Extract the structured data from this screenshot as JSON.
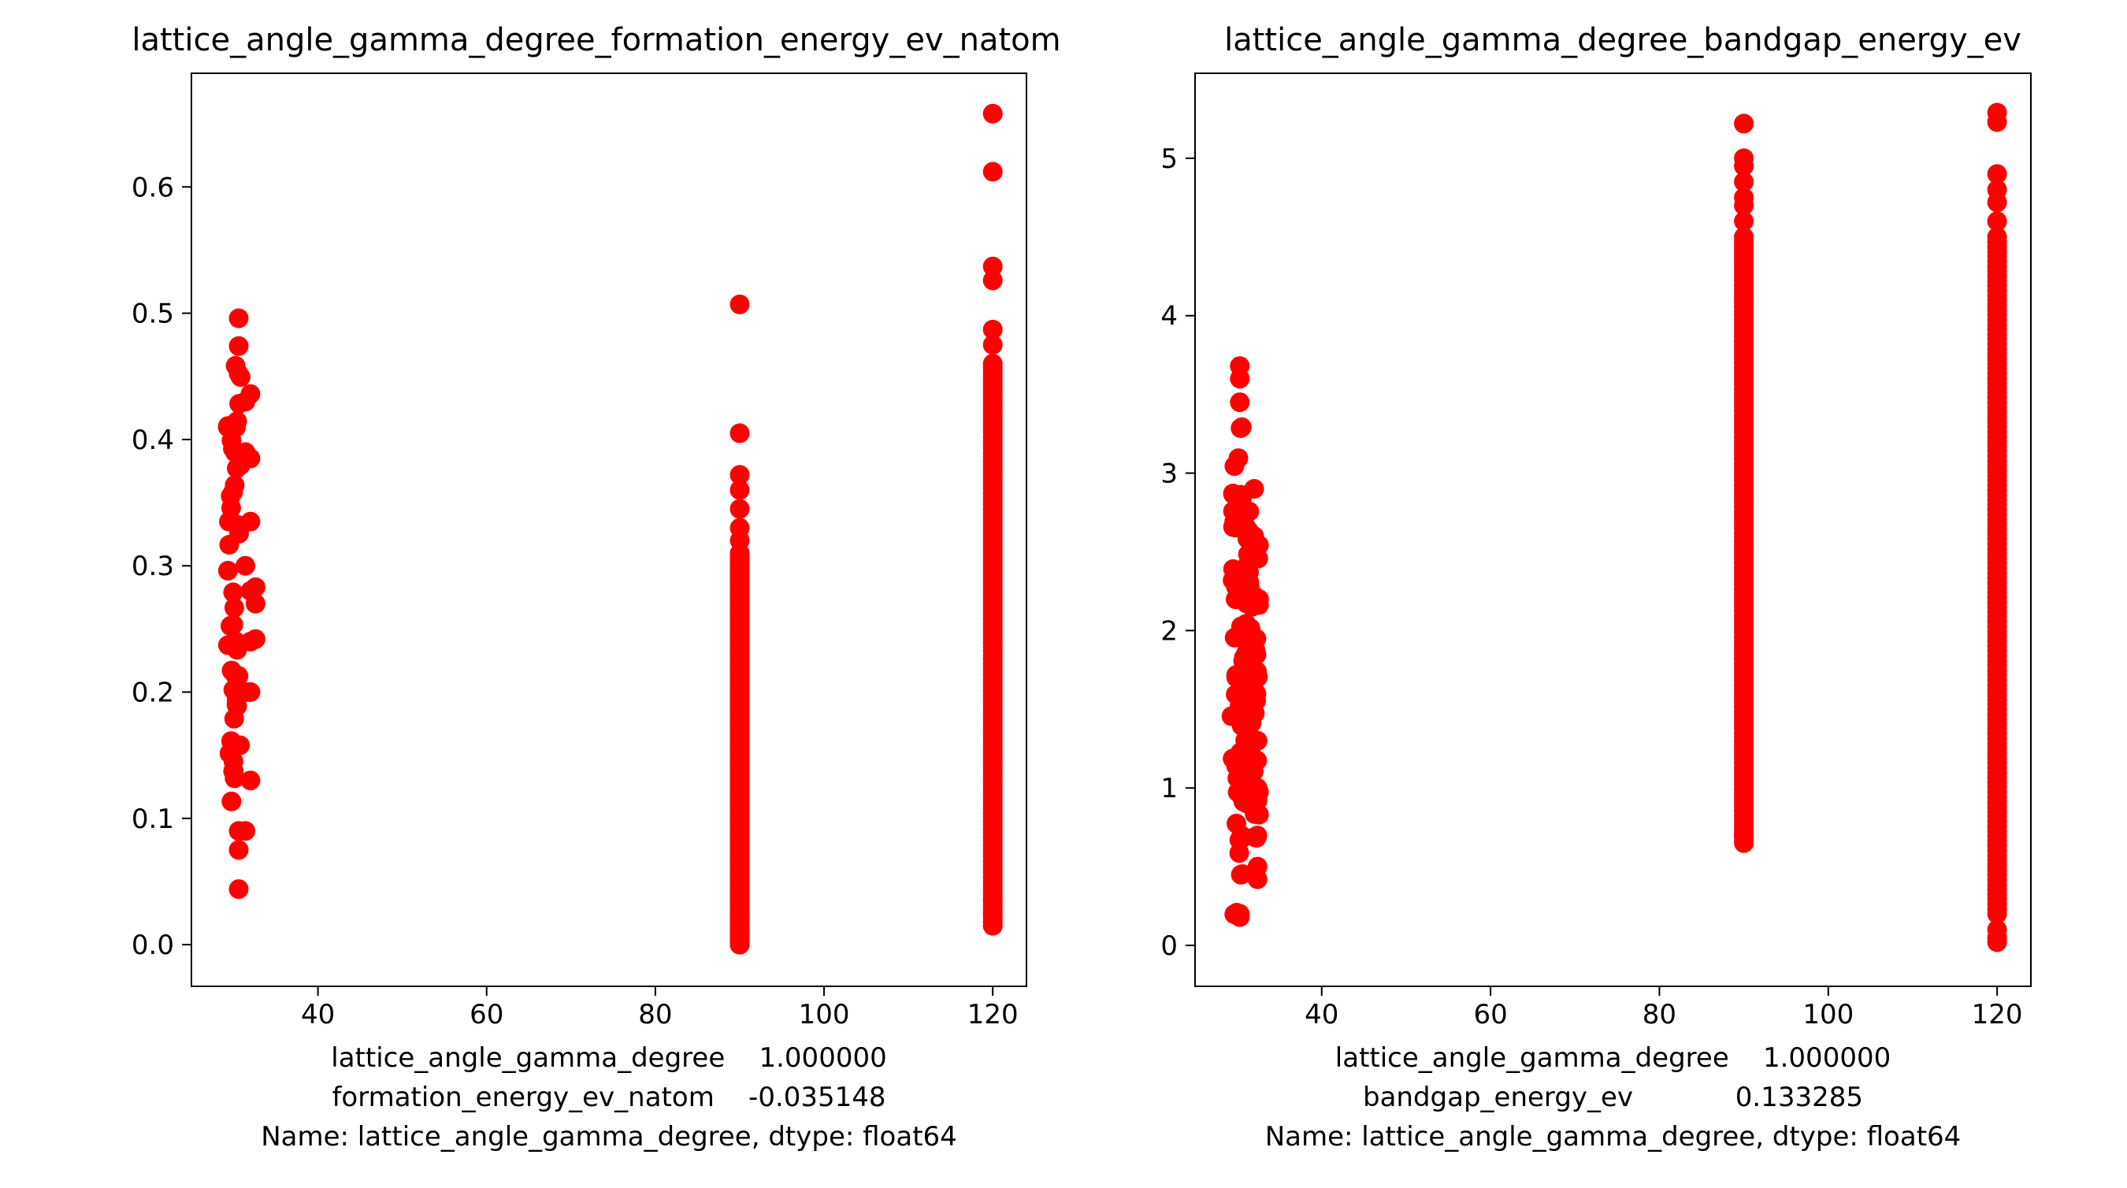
{
  "chart_data": [
    {
      "type": "scatter",
      "title": "lattice_angle_gamma_degree_formation_energy_ev_natom",
      "xlabel_lines": [
        "lattice_angle_gamma_degree    1.000000",
        "formation_energy_ev_natom    -0.035148",
        "Name: lattice_angle_gamma_degree, dtype: float64"
      ],
      "xlim": [
        25,
        124
      ],
      "ylim": [
        -0.033,
        0.69
      ],
      "xticks": [
        40,
        60,
        80,
        100,
        120
      ],
      "yticks": [
        0.0,
        0.1,
        0.2,
        0.3,
        0.4,
        0.5,
        0.6
      ],
      "ytick_labels": [
        "0.0",
        "0.1",
        "0.2",
        "0.3",
        "0.4",
        "0.5",
        "0.6"
      ],
      "marker_color": "#ff0000",
      "groups": [
        {
          "x": 30.1,
          "y_range": [
            0.07,
            0.46
          ],
          "scatter": true
        },
        {
          "x": 30.6,
          "y": [
            0.044,
            0.496,
            0.474,
            0.452,
            0.09,
            0.075
          ]
        },
        {
          "x": 31.4,
          "y": [
            0.43,
            0.39,
            0.3,
            0.2,
            0.09
          ]
        },
        {
          "x": 32.0,
          "y": [
            0.436,
            0.385,
            0.335,
            0.28,
            0.24,
            0.2,
            0.13
          ]
        },
        {
          "x": 32.6,
          "y": [
            0.283,
            0.27,
            0.242
          ]
        },
        {
          "x": 90.0,
          "y_range": [
            0.0,
            0.31
          ],
          "dense": true
        },
        {
          "x": 90.0,
          "y": [
            0.0,
            0.005,
            0.012,
            0.02,
            0.32,
            0.33,
            0.345,
            0.36,
            0.372,
            0.405,
            0.507
          ]
        },
        {
          "x": 120.0,
          "y_range": [
            0.015,
            0.46
          ],
          "dense": true
        },
        {
          "x": 120.0,
          "y": [
            0.015,
            0.025,
            0.035,
            0.475,
            0.487,
            0.526,
            0.537,
            0.612,
            0.658
          ]
        }
      ]
    },
    {
      "type": "scatter",
      "title": "lattice_angle_gamma_degree_bandgap_energy_ev",
      "xlabel_lines": [
        "lattice_angle_gamma_degree    1.000000",
        "bandgap_energy_ev            0.133285",
        "Name: lattice_angle_gamma_degree, dtype: float64"
      ],
      "xlim": [
        25,
        124
      ],
      "ylim": [
        -0.26,
        5.54
      ],
      "xticks": [
        40,
        60,
        80,
        100,
        120
      ],
      "yticks": [
        0,
        1,
        2,
        3,
        4,
        5
      ],
      "ytick_labels": [
        "0",
        "1",
        "2",
        "3",
        "4",
        "5"
      ],
      "marker_color": "#ff0000",
      "groups": [
        {
          "x": 30.1,
          "y_range": [
            0.18,
            3.3
          ],
          "scatter": true
        },
        {
          "x": 30.3,
          "y": [
            0.18,
            0.2,
            3.45,
            3.6,
            3.68
          ]
        },
        {
          "x": 31.0,
          "y_range": [
            0.6,
            2.9
          ],
          "scatter": true
        },
        {
          "x": 31.8,
          "y_range": [
            0.6,
            2.6
          ],
          "scatter": true
        },
        {
          "x": 32.4,
          "y": [
            0.42,
            0.5,
            0.92,
            1.0,
            1.3
          ]
        },
        {
          "x": 32.0,
          "y": [
            2.9,
            2.6
          ]
        },
        {
          "x": 90.0,
          "y_range": [
            0.66,
            4.5
          ],
          "dense": true
        },
        {
          "x": 90.0,
          "y": [
            0.65,
            0.7,
            4.6,
            4.7,
            4.75,
            4.85,
            4.95,
            5.0,
            5.22
          ]
        },
        {
          "x": 120.0,
          "y_range": [
            0.2,
            4.5
          ],
          "dense": true
        },
        {
          "x": 120.0,
          "y": [
            0.02,
            0.05,
            0.1,
            4.6,
            4.72,
            4.8,
            4.9,
            5.23,
            5.29
          ]
        }
      ]
    }
  ]
}
